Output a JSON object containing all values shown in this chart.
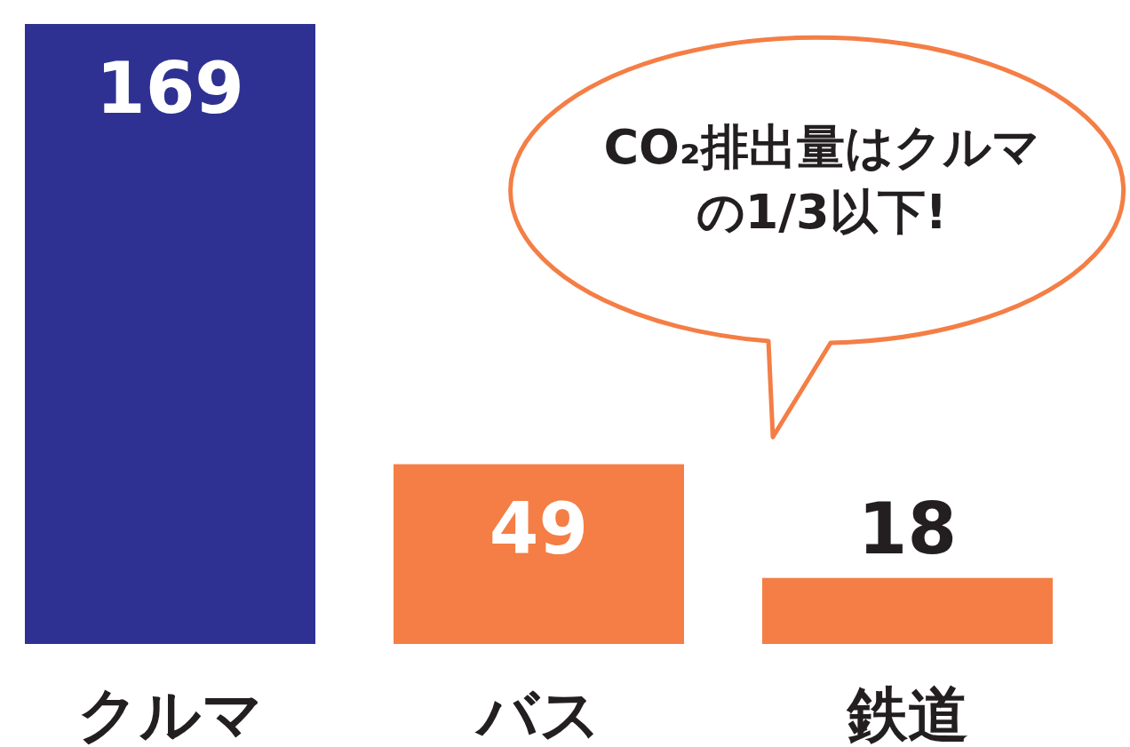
{
  "chart_data": {
    "type": "bar",
    "categories": [
      "クルマ",
      "バス",
      "鉄道"
    ],
    "values": [
      169,
      49,
      18
    ],
    "colors": [
      "#2e3192",
      "#f47e45",
      "#f47e45"
    ],
    "data_labels": true,
    "annotations": [
      "CO₂排出量はクルマの1/3以下!"
    ]
  }
}
